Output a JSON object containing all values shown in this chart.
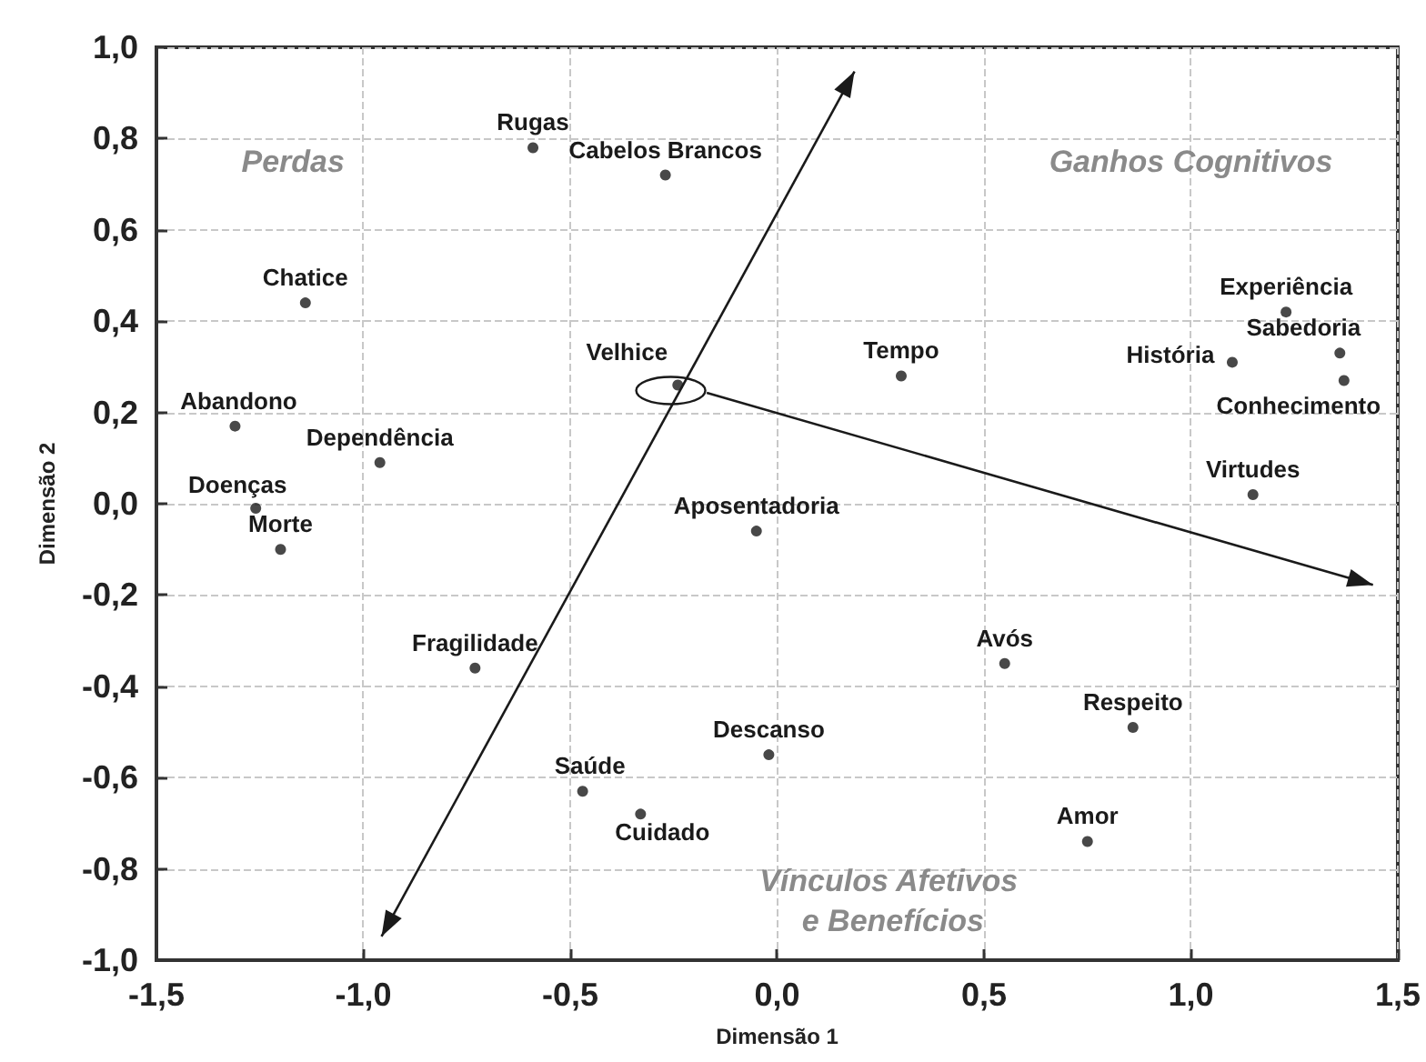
{
  "chart_data": {
    "type": "scatter",
    "xlabel": "Dimensão 1",
    "ylabel": "Dimensão 2",
    "x": [
      -0.59,
      -0.27,
      -1.14,
      -0.24,
      -1.31,
      -0.96,
      -1.26,
      -1.2,
      -0.05,
      -0.73,
      -0.47,
      -0.33,
      -0.02,
      0.55,
      0.86,
      0.75,
      0.3,
      1.23,
      1.1,
      1.36,
      1.37,
      1.15
    ],
    "series": [
      {
        "color": "#1a1a1a",
        "values": [
          0.78,
          0.72,
          0.44,
          0.26,
          0.17,
          0.09,
          -0.01,
          -0.1,
          -0.06,
          -0.36,
          -0.63,
          -0.68,
          -0.55,
          -0.35,
          -0.49,
          -0.74,
          0.28,
          0.42,
          0.31,
          0.33,
          0.27,
          0.02
        ]
      }
    ],
    "marker": "circle",
    "xlim": [
      -1.5,
      1.5
    ],
    "xticks": [
      {
        "value": -1.5,
        "label": "-1,5"
      },
      {
        "value": -1,
        "label": "-1,0"
      },
      {
        "value": -0.5,
        "label": "-0,5"
      },
      {
        "value": 0,
        "label": "0,0"
      },
      {
        "value": 0.5,
        "label": "0,5"
      },
      {
        "value": 1,
        "label": "1,0"
      },
      {
        "value": 1.5,
        "label": "1,5"
      }
    ],
    "ylim": [
      -1,
      1
    ],
    "yticks": [
      {
        "value": -1,
        "label": "-1,0"
      },
      {
        "value": -0.8,
        "label": "-0,8"
      },
      {
        "value": -0.6,
        "label": "-0,6"
      },
      {
        "value": -0.4,
        "label": "-0,4"
      },
      {
        "value": -0.2,
        "label": "-0,2"
      },
      {
        "value": 0,
        "label": "0,0"
      },
      {
        "value": 0.2,
        "label": "0,2"
      },
      {
        "value": 0.4,
        "label": "0,4"
      },
      {
        "value": 0.6,
        "label": "0,6"
      },
      {
        "value": 0.8,
        "label": "0,8"
      },
      {
        "value": 1,
        "label": "1,0"
      }
    ],
    "grid": true,
    "annotations": [
      {
        "text": "Rugas",
        "x": -0.59,
        "y": 0.78
      },
      {
        "text": "Cabelos Brancos",
        "x": -0.27,
        "y": 0.72
      },
      {
        "text": "Chatice",
        "x": -1.14,
        "y": 0.44
      },
      {
        "text": "Velhice",
        "x": -0.24,
        "y": 0.26
      },
      {
        "text": "Abandono",
        "x": -1.31,
        "y": 0.17
      },
      {
        "text": "Dependência",
        "x": -0.96,
        "y": 0.09
      },
      {
        "text": "Doenças",
        "x": -1.26,
        "y": -0.01
      },
      {
        "text": "Morte",
        "x": -1.2,
        "y": -0.1
      },
      {
        "text": "Aposentadoria",
        "x": -0.05,
        "y": -0.06
      },
      {
        "text": "Fragilidade",
        "x": -0.73,
        "y": -0.36
      },
      {
        "text": "Saúde",
        "x": -0.47,
        "y": -0.63
      },
      {
        "text": "Cuidado",
        "x": -0.33,
        "y": -0.68
      },
      {
        "text": "Descanso",
        "x": -0.02,
        "y": -0.55
      },
      {
        "text": "Avós",
        "x": 0.55,
        "y": -0.35
      },
      {
        "text": "Respeito",
        "x": 0.86,
        "y": -0.49
      },
      {
        "text": "Amor",
        "x": 0.75,
        "y": -0.74
      },
      {
        "text": "Tempo",
        "x": 0.3,
        "y": 0.28
      },
      {
        "text": "Experiência",
        "x": 1.23,
        "y": 0.42
      },
      {
        "text": "História",
        "x": 1.1,
        "y": 0.31
      },
      {
        "text": "Sabedoria",
        "x": 1.36,
        "y": 0.33
      },
      {
        "text": "Conhecimento",
        "x": 1.37,
        "y": 0.27
      },
      {
        "text": "Virtudes",
        "x": 1.15,
        "y": 0.02
      },
      "Perdas",
      "Ganhos Cognitivos",
      "Vínculos Afetivos e Benefícios"
    ]
  }
}
